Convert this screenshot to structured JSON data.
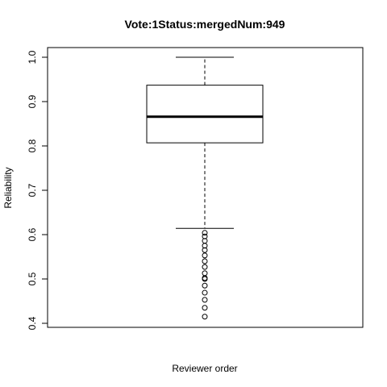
{
  "chart_data": {
    "type": "boxplot",
    "title": "Vote:1Status:mergedNum:949",
    "xlabel": "Reviewer order",
    "ylabel": "Reliability",
    "ylim": [
      0.4,
      1.0
    ],
    "yticks": [
      0.4,
      0.5,
      0.6,
      0.7,
      0.8,
      0.9,
      1.0
    ],
    "ytick_labels": [
      "0.4",
      "0.5",
      "0.6",
      "0.7",
      "0.8",
      "0.9",
      "1.0"
    ],
    "grid": false,
    "box": {
      "whisker_low": 0.614,
      "q1": 0.807,
      "median": 0.866,
      "q3": 0.937,
      "whisker_high": 1.0
    },
    "outliers": [
      0.604,
      0.596,
      0.586,
      0.575,
      0.565,
      0.553,
      0.54,
      0.527,
      0.513,
      0.502,
      0.5,
      0.485,
      0.469,
      0.453,
      0.435,
      0.415
    ]
  }
}
